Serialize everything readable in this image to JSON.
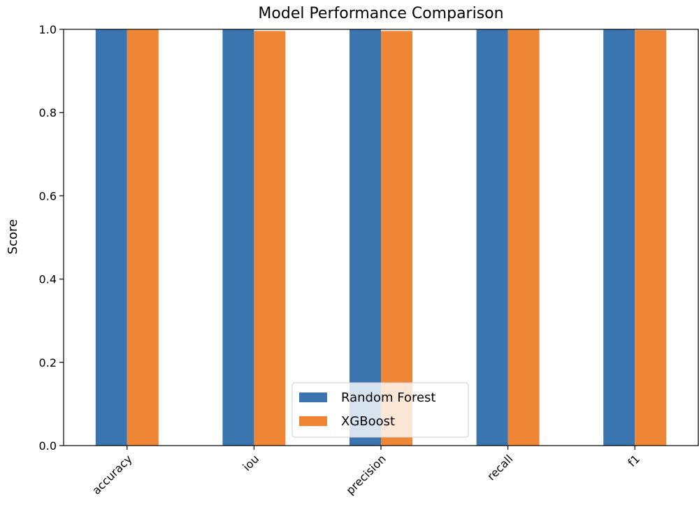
{
  "chart_data": {
    "type": "bar",
    "title": "Model Performance Comparison",
    "xlabel": "",
    "ylabel": "Score",
    "categories": [
      "accuracy",
      "iou",
      "precision",
      "recall",
      "f1"
    ],
    "series": [
      {
        "name": "Random Forest",
        "values": [
          1.0,
          1.0,
          1.0,
          1.0,
          1.0
        ]
      },
      {
        "name": "XGBoost",
        "values": [
          1.0,
          0.996,
          0.996,
          1.0,
          0.998
        ]
      }
    ],
    "ylim": [
      0,
      1.0
    ],
    "yticks": [
      "0.0",
      "0.2",
      "0.4",
      "0.6",
      "0.8",
      "1.0"
    ],
    "grid": false,
    "legend_position": "bottom-center",
    "colors": [
      "#3a75af",
      "#ef8636"
    ]
  }
}
